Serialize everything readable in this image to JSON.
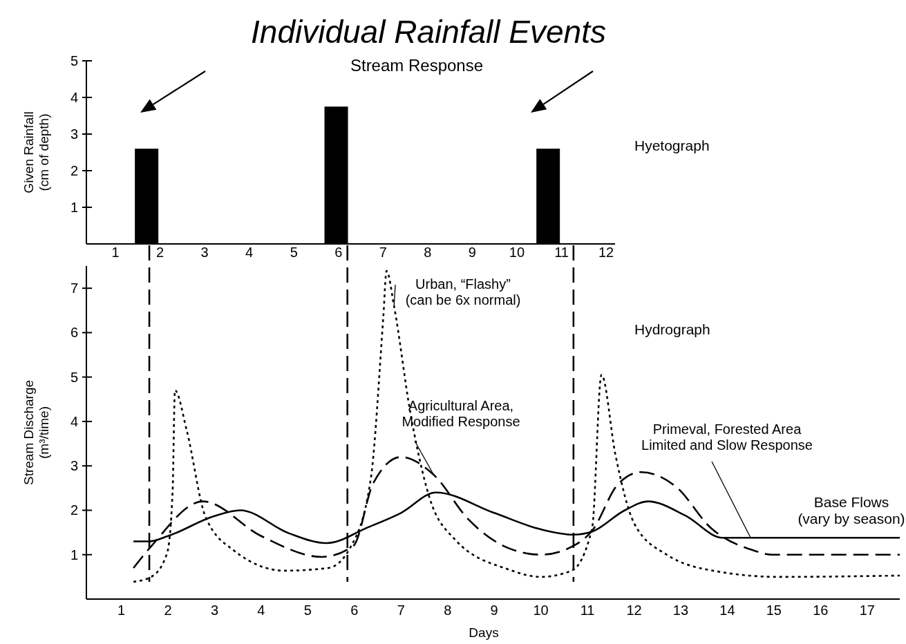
{
  "chart_data": [
    {
      "type": "bar",
      "title": "Individual Rainfall Events",
      "ylabel": "Given Rainfall\n(cm of depth)",
      "x": [
        1.7,
        5.95,
        10.7
      ],
      "values": [
        2.6,
        3.75,
        2.6
      ],
      "color": "#000000",
      "xlim": [
        0.35,
        12.2
      ],
      "xticks": [
        1,
        2,
        3,
        4,
        5,
        6,
        7,
        8,
        9,
        10,
        11,
        12
      ],
      "ylim": [
        0,
        5
      ],
      "yticks": [
        1,
        2,
        3,
        4,
        5
      ],
      "annotations": [
        "Stream Response",
        "Hyetograph"
      ]
    },
    {
      "type": "line",
      "xlabel": "Days",
      "ylabel": "Stream Discharge\n(m³/time)",
      "xlim": [
        0.25,
        17.7
      ],
      "xticks": [
        1,
        2,
        3,
        4,
        5,
        6,
        7,
        8,
        9,
        10,
        11,
        12,
        13,
        14,
        15,
        16,
        17
      ],
      "ylim": [
        0,
        7.5
      ],
      "yticks": [
        1,
        2,
        3,
        4,
        5,
        6,
        7
      ],
      "series": [
        {
          "name": "Primeval, Forested Area\nLimited and Slow Response",
          "color": "#000000",
          "line_style": "solid",
          "x": [
            1.26,
            1.6,
            2.0,
            3.0,
            3.55,
            4.6,
            5.4,
            6.3,
            7.0,
            7.75,
            9.0,
            10.0,
            10.7,
            11.1,
            11.8,
            12.3,
            13.1,
            13.9,
            14.5,
            17.7
          ],
          "values": [
            1.3,
            1.3,
            1.42,
            1.87,
            2.0,
            1.48,
            1.26,
            1.62,
            1.94,
            2.4,
            1.94,
            1.57,
            1.45,
            1.52,
            2.0,
            2.2,
            1.88,
            1.38,
            1.38,
            1.38
          ]
        },
        {
          "name": "Agricultural Area,\nModified Response",
          "color": "#000000",
          "line_style": "dashed",
          "x": [
            1.26,
            1.65,
            2.75,
            4.0,
            5.3,
            5.98,
            6.4,
            7.0,
            7.7,
            8.45,
            9.3,
            10.0,
            10.7,
            11.1,
            11.65,
            12.15,
            12.9,
            13.65,
            14.55,
            14.95,
            17.7
          ],
          "values": [
            0.7,
            1.2,
            2.2,
            1.42,
            0.95,
            1.2,
            2.6,
            3.2,
            2.8,
            1.79,
            1.15,
            1.0,
            1.2,
            1.54,
            2.58,
            2.86,
            2.53,
            1.6,
            1.1,
            1.0,
            1.0
          ]
        },
        {
          "name": "Urban, “Flashy”\n(can be 6x normal)",
          "color": "#000000",
          "line_style": "dotted",
          "x": [
            1.26,
            1.64,
            1.98,
            2.1,
            2.15,
            2.4,
            2.8,
            3.42,
            4.5,
            5.44,
            5.9,
            6.35,
            6.62,
            6.69,
            6.85,
            7.2,
            7.6,
            8.15,
            9.3,
            10.0,
            10.66,
            11.1,
            11.3,
            11.6,
            12.0,
            12.7,
            13.8,
            15.1,
            17.7
          ],
          "values": [
            0.39,
            0.5,
            1.03,
            2.43,
            4.7,
            3.81,
            1.87,
            1.09,
            0.64,
            0.7,
            1.14,
            2.7,
            6.35,
            7.39,
            6.6,
            4.2,
            2.32,
            1.35,
            0.67,
            0.5,
            0.64,
            1.6,
            5.05,
            3.25,
            1.71,
            1.0,
            0.62,
            0.5,
            0.53
          ]
        }
      ],
      "ref_lines": [
        {
          "axis": "x",
          "value": 1.6,
          "line_style": "dashed"
        },
        {
          "axis": "x",
          "value": 5.85,
          "line_style": "dashed"
        },
        {
          "axis": "x",
          "value": 10.7,
          "line_style": "dashed"
        }
      ],
      "annotations": [
        "Hydrograph",
        "Base Flows\n(vary by season)"
      ]
    }
  ]
}
